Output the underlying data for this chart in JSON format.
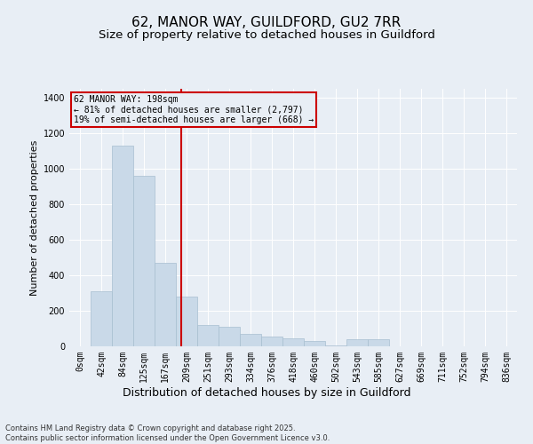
{
  "title1": "62, MANOR WAY, GUILDFORD, GU2 7RR",
  "title2": "Size of property relative to detached houses in Guildford",
  "xlabel": "Distribution of detached houses by size in Guildford",
  "ylabel": "Number of detached properties",
  "footer1": "Contains HM Land Registry data © Crown copyright and database right 2025.",
  "footer2": "Contains public sector information licensed under the Open Government Licence v3.0.",
  "annotation_title": "62 MANOR WAY: 198sqm",
  "annotation_line1": "← 81% of detached houses are smaller (2,797)",
  "annotation_line2": "19% of semi-detached houses are larger (668) →",
  "bar_color": "#c9d9e8",
  "bar_edge_color": "#a8bfd0",
  "vline_color": "#cc0000",
  "vline_x": 4.76,
  "annotation_box_color": "#cc0000",
  "bg_color": "#e8eef5",
  "categories": [
    "0sqm",
    "42sqm",
    "84sqm",
    "125sqm",
    "167sqm",
    "209sqm",
    "251sqm",
    "293sqm",
    "334sqm",
    "376sqm",
    "418sqm",
    "460sqm",
    "502sqm",
    "543sqm",
    "585sqm",
    "627sqm",
    "669sqm",
    "711sqm",
    "752sqm",
    "794sqm",
    "836sqm"
  ],
  "values": [
    0,
    310,
    1130,
    960,
    470,
    280,
    120,
    110,
    70,
    55,
    45,
    30,
    5,
    40,
    40,
    0,
    0,
    0,
    0,
    0,
    0
  ],
  "ylim": [
    0,
    1450
  ],
  "yticks": [
    0,
    200,
    400,
    600,
    800,
    1000,
    1200,
    1400
  ],
  "grid_color": "#ffffff",
  "title1_fontsize": 11,
  "title2_fontsize": 9.5,
  "ylabel_fontsize": 8,
  "xlabel_fontsize": 9,
  "tick_fontsize": 7,
  "footer_fontsize": 6,
  "annot_fontsize": 7
}
